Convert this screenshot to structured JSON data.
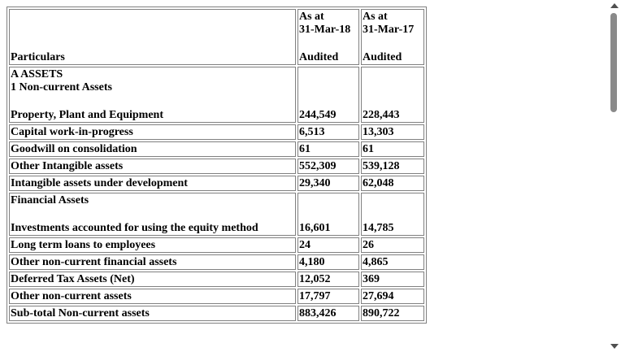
{
  "table": {
    "header": {
      "particulars": "Particulars",
      "col1": {
        "line1": "As at",
        "line2": "31-Mar-18",
        "status": "Audited"
      },
      "col2": {
        "line1": "As at",
        "line2": "31-Mar-17",
        "status": "Audited"
      }
    },
    "section_heading": "A ASSETS",
    "subsection_heading": "1 Non-current Assets",
    "financial_assets_heading": "Financial Assets",
    "rows": [
      {
        "label": "Property, Plant and Equipment",
        "v1": "244,549",
        "v2": "228,443"
      },
      {
        "label": "Capital work-in-progress",
        "v1": "6,513",
        "v2": "13,303"
      },
      {
        "label": "Goodwill on consolidation",
        "v1": "61",
        "v2": "61"
      },
      {
        "label": "Other Intangible assets",
        "v1": "552,309",
        "v2": "539,128"
      },
      {
        "label": "Intangible assets under development",
        "v1": "29,340",
        "v2": "62,048"
      },
      {
        "label": "Investments accounted for using the equity method",
        "v1": "16,601",
        "v2": "14,785"
      },
      {
        "label": "Long term loans to employees",
        "v1": "24",
        "v2": "26"
      },
      {
        "label": "Other non-current financial assets",
        "v1": "4,180",
        "v2": "4,865"
      },
      {
        "label": "Deferred Tax Assets (Net)",
        "v1": "12,052",
        "v2": "369"
      },
      {
        "label": "Other non-current assets",
        "v1": "17,797",
        "v2": "27,694"
      },
      {
        "label": "Sub-total Non-current assets",
        "v1": "883,426",
        "v2": "890,722"
      }
    ]
  }
}
